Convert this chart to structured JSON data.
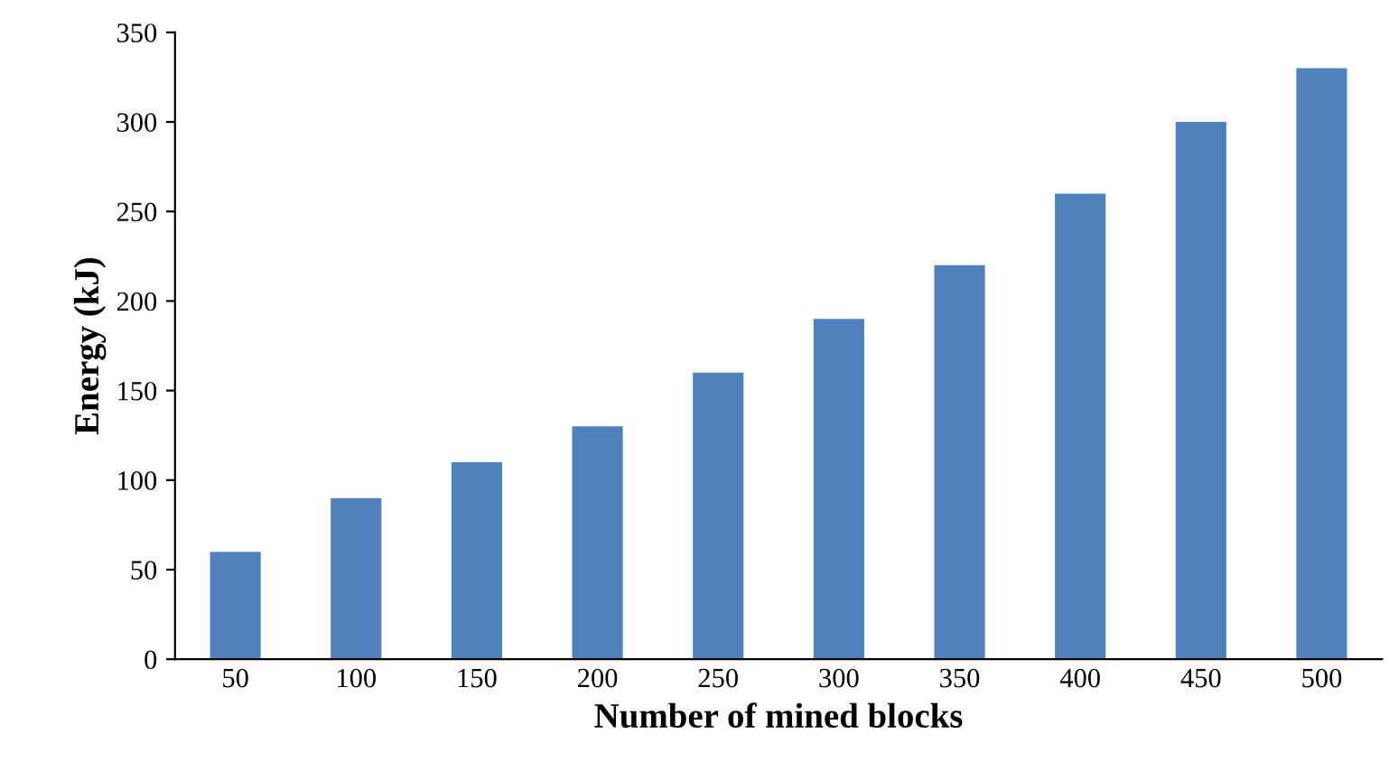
{
  "chart_data": {
    "type": "bar",
    "xlabel": "Number of mined blocks",
    "ylabel": "Energy (kJ)",
    "categories": [
      "50",
      "100",
      "150",
      "200",
      "250",
      "300",
      "350",
      "400",
      "450",
      "500"
    ],
    "values": [
      60,
      90,
      110,
      130,
      160,
      190,
      220,
      260,
      300,
      330
    ],
    "color": "#4f81bd",
    "ylim": [
      0,
      350
    ],
    "yticks": [
      0,
      50,
      100,
      150,
      200,
      250,
      300,
      350
    ],
    "grid": false,
    "legend": false
  }
}
